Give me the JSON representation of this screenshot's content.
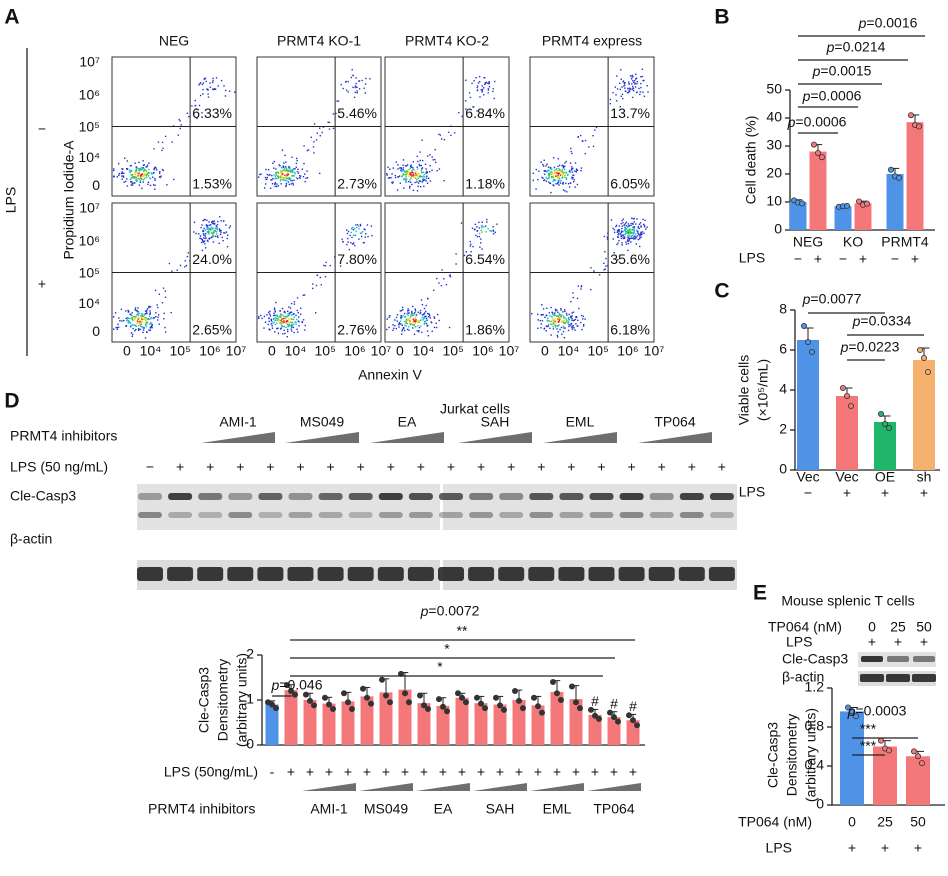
{
  "flow": {
    "panel": "A",
    "columns": [
      "NEG",
      "PRMT4 KO-1",
      "PRMT4 KO-2",
      "PRMT4 express"
    ],
    "row_label": "LPS",
    "rows": [
      "−",
      "+"
    ],
    "y_label": "Propidium Iodide-A",
    "x_label": "Annexin V",
    "yticks": [
      "10⁷",
      "10⁶",
      "10⁵",
      "10⁴",
      "0"
    ],
    "xticks": [
      "0",
      "10⁴",
      "10⁵",
      "10⁶",
      "10⁷"
    ],
    "upper_right": [
      [
        "6.33%",
        "5.46%",
        "6.84%",
        "13.7%"
      ],
      [
        "24.0%",
        "7.80%",
        "6.54%",
        "35.6%"
      ]
    ],
    "lower_right": [
      [
        "1.53%",
        "2.73%",
        "1.18%",
        "6.05%"
      ],
      [
        "2.65%",
        "2.76%",
        "1.86%",
        "6.18%"
      ]
    ]
  },
  "blot_d": {
    "title": "Jurkat cells",
    "inhibitor_label": "PRMT4 inhibitors",
    "groups": [
      "AMI-1",
      "MS049",
      "EA",
      "SAH",
      "EML",
      "TP064"
    ],
    "lps_label": "LPS (50 ng/mL)",
    "lps": [
      "−",
      "+",
      "+",
      "+",
      "+",
      "+",
      "+",
      "+",
      "+",
      "+",
      "+",
      "+",
      "+",
      "+",
      "+",
      "+",
      "+",
      "+",
      "+",
      "+"
    ],
    "bands": [
      "Cle-Casp3",
      "β-actin"
    ]
  },
  "blot_e": {
    "title": "Mouse splenic T cells",
    "dose_label": "TP064 (nM)",
    "doses": [
      "0",
      "25",
      "50"
    ],
    "lps_label": "LPS",
    "lps": [
      "+",
      "+",
      "+"
    ],
    "bands": [
      "Cle-Casp3",
      "β-actin"
    ]
  },
  "chart_data": [
    {
      "type": "grouped-bar",
      "panel": "B",
      "y_label": "Cell death (%)",
      "categories": [
        "NEG",
        "KO",
        "PRMT4"
      ],
      "row_label": "LPS",
      "series": [
        {
          "name": "−",
          "color": "#4f93e6",
          "values": [
            10,
            8.5,
            20
          ],
          "errors": [
            0.8,
            0.4,
            2
          ],
          "points": [
            [
              10.6,
              9.8,
              9.5
            ],
            [
              8.3,
              8.5,
              8.6
            ],
            [
              21.5,
              19.2,
              18.6
            ]
          ]
        },
        {
          "name": "+",
          "color": "#f4787a",
          "values": [
            28,
            9.5,
            38.5
          ],
          "errors": [
            2.5,
            0.8,
            2.6
          ],
          "points": [
            [
              30.5,
              27.5,
              26
            ],
            [
              10.2,
              9,
              9.4
            ],
            [
              41,
              37.5,
              37
            ]
          ]
        }
      ],
      "ylim": [
        0,
        50
      ],
      "yticks": [
        0,
        10,
        20,
        30,
        40,
        50
      ],
      "annotations": [
        "p=0.0006",
        "p=0.0006",
        "p=0.0015",
        "p=0.0214",
        "p=0.0016"
      ]
    },
    {
      "type": "bar",
      "panel": "C",
      "y_label": [
        "Viable cells",
        "(×10⁵/mL)"
      ],
      "categories": [
        "Vec",
        "Vec",
        "OE",
        "sh"
      ],
      "row_label": "LPS",
      "row_values": [
        "−",
        "+",
        "+",
        "+"
      ],
      "values": [
        6.5,
        3.7,
        2.4,
        5.5
      ],
      "errors": [
        0.6,
        0.4,
        0.3,
        0.6
      ],
      "points": [
        [
          7.2,
          6.4,
          5.9
        ],
        [
          4.1,
          3.7,
          3.2
        ],
        [
          2.8,
          2.3,
          2.1
        ],
        [
          6,
          5.6,
          4.9
        ]
      ],
      "colors": [
        "#4f93e6",
        "#f4787a",
        "#1fb56a",
        "#f6b16e"
      ],
      "ylim": [
        0,
        8
      ],
      "yticks": [
        0,
        2,
        4,
        6,
        8
      ],
      "annotations": [
        "p=0.0077",
        "p=0.0334",
        "p=0.0223"
      ]
    },
    {
      "type": "bar",
      "panel": "D",
      "y_label": [
        "Cle-Casp3",
        "Densitometry",
        "(arbitrary units)"
      ],
      "row_label": "LPS (50ng/mL)",
      "row_values": [
        "-",
        "+",
        "+",
        "+",
        "+",
        "+",
        "+",
        "+",
        "+",
        "+",
        "+",
        "+",
        "+",
        "+",
        "+",
        "+",
        "+",
        "+",
        "+",
        "+"
      ],
      "group_label": "PRMT4 inhibitors",
      "groups": [
        "AMI-1",
        "MS049",
        "EA",
        "SAH",
        "EML",
        "TP064"
      ],
      "values": [
        0.9,
        1.22,
        1.0,
        0.92,
        0.97,
        1.08,
        1.17,
        1.23,
        0.93,
        0.87,
        1.05,
        0.93,
        0.9,
        1.0,
        0.88,
        1.18,
        1.02,
        0.67,
        0.62,
        0.55
      ],
      "errors": [
        0.08,
        0.12,
        0.15,
        0.14,
        0.2,
        0.2,
        0.3,
        0.38,
        0.22,
        0.18,
        0.1,
        0.15,
        0.18,
        0.22,
        0.2,
        0.25,
        0.3,
        0.12,
        0.12,
        0.13
      ],
      "points": [
        [
          0.95,
          0.9,
          0.82
        ],
        [
          1.33,
          1.2,
          1.12
        ],
        [
          1.12,
          0.98,
          0.88
        ],
        [
          1.05,
          0.9,
          0.8
        ],
        [
          1.15,
          0.95,
          0.8
        ],
        [
          1.25,
          1.05,
          0.92
        ],
        [
          1.45,
          1.1,
          0.95
        ],
        [
          1.58,
          1.15,
          0.95
        ],
        [
          1.1,
          0.88,
          0.8
        ],
        [
          1.02,
          0.85,
          0.75
        ],
        [
          1.15,
          1.05,
          0.95
        ],
        [
          1.05,
          0.92,
          0.82
        ],
        [
          1.05,
          0.88,
          0.78
        ],
        [
          1.2,
          0.98,
          0.82
        ],
        [
          1.05,
          0.86,
          0.72
        ],
        [
          1.4,
          1.15,
          1.0
        ],
        [
          1.3,
          0.95,
          0.82
        ],
        [
          0.78,
          0.65,
          0.58
        ],
        [
          0.72,
          0.62,
          0.52
        ],
        [
          0.66,
          0.55,
          0.44
        ]
      ],
      "colors": [
        "#4f93e6",
        "#f4787a",
        "#f4787a",
        "#f4787a",
        "#f4787a",
        "#f4787a",
        "#f4787a",
        "#f4787a",
        "#f4787a",
        "#f4787a",
        "#f4787a",
        "#f4787a",
        "#f4787a",
        "#f4787a",
        "#f4787a",
        "#f4787a",
        "#f4787a",
        "#f4787a",
        "#f4787a",
        "#f4787a"
      ],
      "flags": [
        null,
        null,
        null,
        null,
        null,
        null,
        null,
        null,
        null,
        null,
        null,
        null,
        null,
        null,
        null,
        null,
        null,
        "#",
        "#",
        "#"
      ],
      "ylim": [
        0,
        2
      ],
      "yticks": [
        0,
        1,
        2
      ],
      "annotations": [
        "p=0.0072",
        "**",
        "*",
        "*",
        "p=0.046"
      ]
    },
    {
      "type": "bar",
      "panel": "E",
      "y_label": [
        "Cle-Casp3",
        "Densitometry",
        "(arbitrary units)"
      ],
      "x_label": "TP064 (nM)",
      "categories": [
        "0",
        "25",
        "50"
      ],
      "row_label": "LPS",
      "row_values": [
        "+",
        "+",
        "+"
      ],
      "values": [
        0.96,
        0.6,
        0.5
      ],
      "errors": [
        0.04,
        0.06,
        0.05
      ],
      "points": [
        [
          1.0,
          0.96,
          0.91
        ],
        [
          0.66,
          0.58,
          0.56
        ],
        [
          0.55,
          0.5,
          0.43
        ]
      ],
      "colors": [
        "#4f93e6",
        "#f4787a",
        "#f4787a"
      ],
      "ylim": [
        0,
        1.2
      ],
      "yticks": [
        0,
        0.4,
        0.8,
        1.2
      ],
      "annotations": [
        "p=0.0003",
        "***",
        "***"
      ]
    }
  ]
}
